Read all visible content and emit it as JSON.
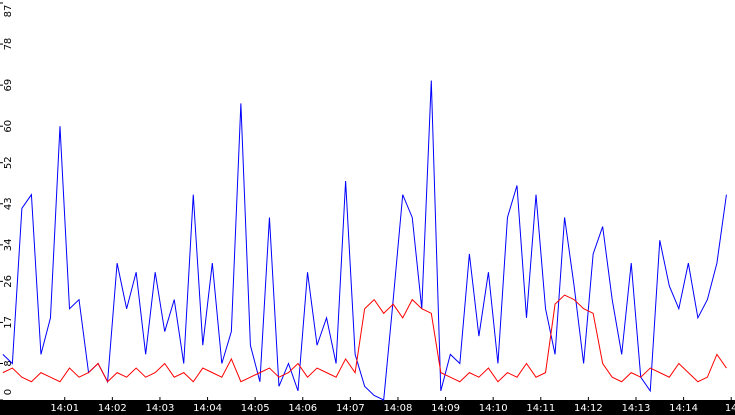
{
  "chart_data": {
    "type": "line",
    "x": [
      -0.3,
      -0.1,
      0.1,
      0.3,
      0.5,
      0.7,
      0.9,
      1.1,
      1.3,
      1.5,
      1.7,
      1.9,
      2.1,
      2.3,
      2.5,
      2.7,
      2.9,
      3.1,
      3.3,
      3.5,
      3.7,
      3.9,
      4.1,
      4.3,
      4.5,
      4.7,
      4.9,
      5.1,
      5.3,
      5.5,
      5.7,
      5.9,
      6.1,
      6.3,
      6.5,
      6.7,
      6.9,
      7.1,
      7.3,
      7.5,
      7.7,
      7.9,
      8.1,
      8.3,
      8.5,
      8.7,
      8.9,
      9.1,
      9.3,
      9.5,
      9.7,
      9.9,
      10.1,
      10.3,
      10.5,
      10.7,
      10.9,
      11.1,
      11.3,
      11.5,
      11.7,
      11.9,
      12.1,
      12.3,
      12.5,
      12.7,
      12.9,
      13.1,
      13.3,
      13.5,
      13.7,
      13.9,
      14.1,
      14.3,
      14.5,
      14.7,
      14.9
    ],
    "series": [
      {
        "color": "#0000ff",
        "values": [
          10,
          8,
          42,
          45,
          10,
          18,
          60,
          20,
          22,
          6,
          8,
          4,
          30,
          20,
          28,
          10,
          28,
          15,
          22,
          8,
          45,
          12,
          30,
          8,
          15,
          65,
          12,
          4,
          40,
          3,
          8,
          2,
          28,
          12,
          18,
          8,
          48,
          10,
          3,
          1,
          0,
          22,
          45,
          40,
          20,
          70,
          2,
          10,
          8,
          32,
          14,
          28,
          8,
          40,
          47,
          18,
          45,
          20,
          10,
          40,
          25,
          8,
          32,
          38,
          22,
          10,
          30,
          5,
          2,
          35,
          25,
          20,
          30,
          18,
          22,
          30,
          45
        ]
      },
      {
        "color": "#ff0000",
        "values": [
          6,
          7,
          5,
          4,
          6,
          5,
          4,
          7,
          5,
          6,
          8,
          4,
          6,
          5,
          7,
          5,
          6,
          8,
          5,
          6,
          4,
          7,
          6,
          5,
          9,
          4,
          5,
          6,
          7,
          5,
          6,
          8,
          5,
          7,
          6,
          5,
          9,
          6,
          20,
          22,
          19,
          21,
          18,
          22,
          20,
          19,
          6,
          5,
          4,
          6,
          5,
          7,
          4,
          6,
          5,
          8,
          5,
          6,
          21,
          23,
          22,
          20,
          19,
          8,
          5,
          4,
          6,
          5,
          7,
          6,
          5,
          8,
          6,
          4,
          5,
          10,
          7
        ]
      }
    ],
    "xlim": [
      -0.36,
      15.08
    ],
    "xticks": [
      {
        "value": 1,
        "label": "14:01"
      },
      {
        "value": 2,
        "label": "14:02"
      },
      {
        "value": 3,
        "label": "14:03"
      },
      {
        "value": 4,
        "label": "14:04"
      },
      {
        "value": 5,
        "label": "14:05"
      },
      {
        "value": 6,
        "label": "14:06"
      },
      {
        "value": 7,
        "label": "14:07"
      },
      {
        "value": 8,
        "label": "14:08"
      },
      {
        "value": 9,
        "label": "14:09"
      },
      {
        "value": 10,
        "label": "14:10"
      },
      {
        "value": 11,
        "label": "14:11"
      },
      {
        "value": 12,
        "label": "14:12"
      },
      {
        "value": 13,
        "label": "14:13"
      },
      {
        "value": 14,
        "label": "14:14"
      },
      {
        "value": 15,
        "label": "14"
      }
    ],
    "ylim": [
      0,
      87
    ],
    "yticks": [
      0,
      8,
      17,
      26,
      34,
      43,
      52,
      60,
      69,
      78,
      87
    ]
  }
}
